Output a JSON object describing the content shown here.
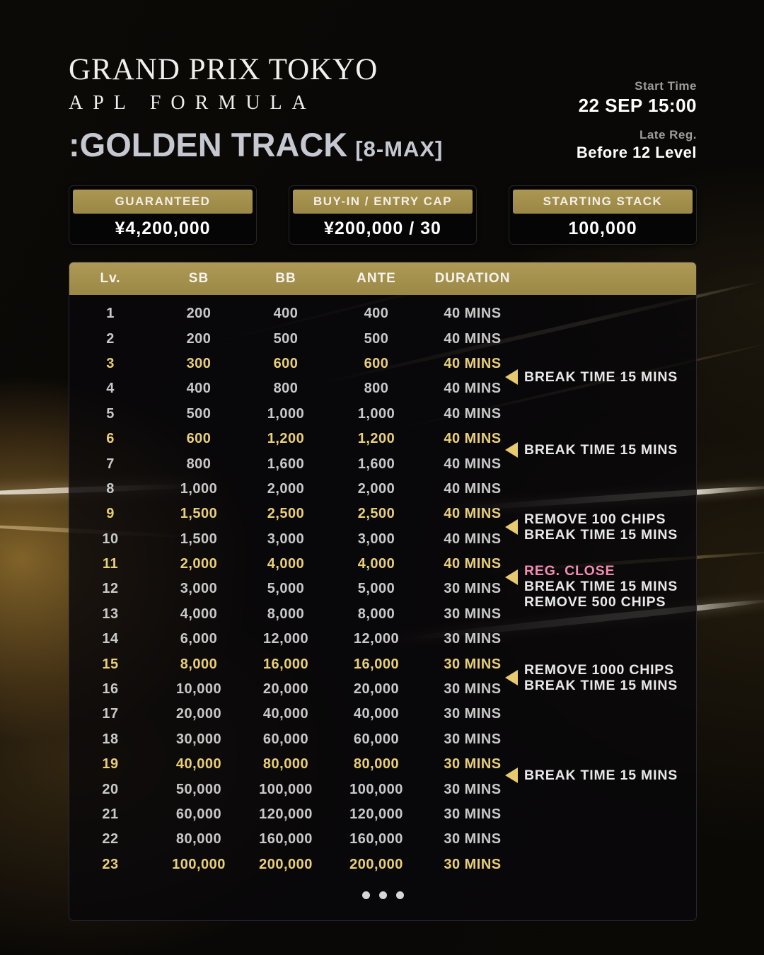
{
  "header": {
    "title_line1": "GRAND PRIX TOKYO",
    "title_line2": "APL FORMULA",
    "event_name": ":GOLDEN TRACK",
    "event_format": "[8-MAX]",
    "start_time_label": "Start Time",
    "start_time_value": "22 SEP 15:00",
    "late_reg_label": "Late Reg.",
    "late_reg_value": "Before 12 Level"
  },
  "info_boxes": [
    {
      "label": "GUARANTEED",
      "value": "¥4,200,000"
    },
    {
      "label": "BUY-IN / ENTRY CAP",
      "value": "¥200,000 / 30"
    },
    {
      "label": "STARTING STACK",
      "value": "100,000"
    }
  ],
  "structure_table": {
    "columns": [
      "Lv.",
      "SB",
      "BB",
      "ANTE",
      "DURATION"
    ],
    "rows": [
      {
        "lv": "1",
        "sb": "200",
        "bb": "400",
        "ante": "400",
        "duration": "40 MINS",
        "highlight": false
      },
      {
        "lv": "2",
        "sb": "200",
        "bb": "500",
        "ante": "500",
        "duration": "40 MINS",
        "highlight": false
      },
      {
        "lv": "3",
        "sb": "300",
        "bb": "600",
        "ante": "600",
        "duration": "40 MINS",
        "highlight": true
      },
      {
        "lv": "4",
        "sb": "400",
        "bb": "800",
        "ante": "800",
        "duration": "40 MINS",
        "highlight": false
      },
      {
        "lv": "5",
        "sb": "500",
        "bb": "1,000",
        "ante": "1,000",
        "duration": "40 MINS",
        "highlight": false
      },
      {
        "lv": "6",
        "sb": "600",
        "bb": "1,200",
        "ante": "1,200",
        "duration": "40 MINS",
        "highlight": true
      },
      {
        "lv": "7",
        "sb": "800",
        "bb": "1,600",
        "ante": "1,600",
        "duration": "40 MINS",
        "highlight": false
      },
      {
        "lv": "8",
        "sb": "1,000",
        "bb": "2,000",
        "ante": "2,000",
        "duration": "40 MINS",
        "highlight": false
      },
      {
        "lv": "9",
        "sb": "1,500",
        "bb": "2,500",
        "ante": "2,500",
        "duration": "40 MINS",
        "highlight": true
      },
      {
        "lv": "10",
        "sb": "1,500",
        "bb": "3,000",
        "ante": "3,000",
        "duration": "40 MINS",
        "highlight": false
      },
      {
        "lv": "11",
        "sb": "2,000",
        "bb": "4,000",
        "ante": "4,000",
        "duration": "40 MINS",
        "highlight": true
      },
      {
        "lv": "12",
        "sb": "3,000",
        "bb": "5,000",
        "ante": "5,000",
        "duration": "30 MINS",
        "highlight": false
      },
      {
        "lv": "13",
        "sb": "4,000",
        "bb": "8,000",
        "ante": "8,000",
        "duration": "30 MINS",
        "highlight": false
      },
      {
        "lv": "14",
        "sb": "6,000",
        "bb": "12,000",
        "ante": "12,000",
        "duration": "30 MINS",
        "highlight": false
      },
      {
        "lv": "15",
        "sb": "8,000",
        "bb": "16,000",
        "ante": "16,000",
        "duration": "30 MINS",
        "highlight": true
      },
      {
        "lv": "16",
        "sb": "10,000",
        "bb": "20,000",
        "ante": "20,000",
        "duration": "30 MINS",
        "highlight": false
      },
      {
        "lv": "17",
        "sb": "20,000",
        "bb": "40,000",
        "ante": "40,000",
        "duration": "30 MINS",
        "highlight": false
      },
      {
        "lv": "18",
        "sb": "30,000",
        "bb": "60,000",
        "ante": "60,000",
        "duration": "30 MINS",
        "highlight": false
      },
      {
        "lv": "19",
        "sb": "40,000",
        "bb": "80,000",
        "ante": "80,000",
        "duration": "30 MINS",
        "highlight": true
      },
      {
        "lv": "20",
        "sb": "50,000",
        "bb": "100,000",
        "ante": "100,000",
        "duration": "30 MINS",
        "highlight": false
      },
      {
        "lv": "21",
        "sb": "60,000",
        "bb": "120,000",
        "ante": "120,000",
        "duration": "30 MINS",
        "highlight": false
      },
      {
        "lv": "22",
        "sb": "80,000",
        "bb": "160,000",
        "ante": "160,000",
        "duration": "30 MINS",
        "highlight": false
      },
      {
        "lv": "23",
        "sb": "100,000",
        "bb": "200,000",
        "ante": "200,000",
        "duration": "30 MINS",
        "highlight": true
      }
    ],
    "more_dots": 3
  },
  "annotations": [
    {
      "after_level": 3,
      "lines": [
        {
          "text": "BREAK TIME 15 MINS",
          "style": "normal"
        }
      ]
    },
    {
      "after_level": 6,
      "lines": [
        {
          "text": "BREAK TIME 15 MINS",
          "style": "normal"
        }
      ]
    },
    {
      "after_level": 9,
      "lines": [
        {
          "text": "REMOVE 100 CHIPS",
          "style": "normal"
        },
        {
          "text": "BREAK TIME 15 MINS",
          "style": "normal"
        }
      ]
    },
    {
      "after_level": 11,
      "lines": [
        {
          "text": "REG. CLOSE",
          "style": "pink"
        },
        {
          "text": "BREAK TIME 15 MINS",
          "style": "normal"
        },
        {
          "text": "REMOVE 500 CHIPS",
          "style": "normal"
        }
      ]
    },
    {
      "after_level": 15,
      "lines": [
        {
          "text": "REMOVE 1000 CHIPS",
          "style": "normal"
        },
        {
          "text": "BREAK TIME 15 MINS",
          "style": "normal"
        }
      ]
    },
    {
      "after_level": 19,
      "lines": [
        {
          "text": "BREAK TIME 15 MINS",
          "style": "normal"
        }
      ]
    }
  ],
  "colors": {
    "gold_bar": "#a5914f",
    "gold_text": "#e9cf78",
    "row_text": "#c9c9c9",
    "pink": "#f28cb4",
    "silver_title": "#c5c8d1",
    "background": "#0a0806"
  }
}
